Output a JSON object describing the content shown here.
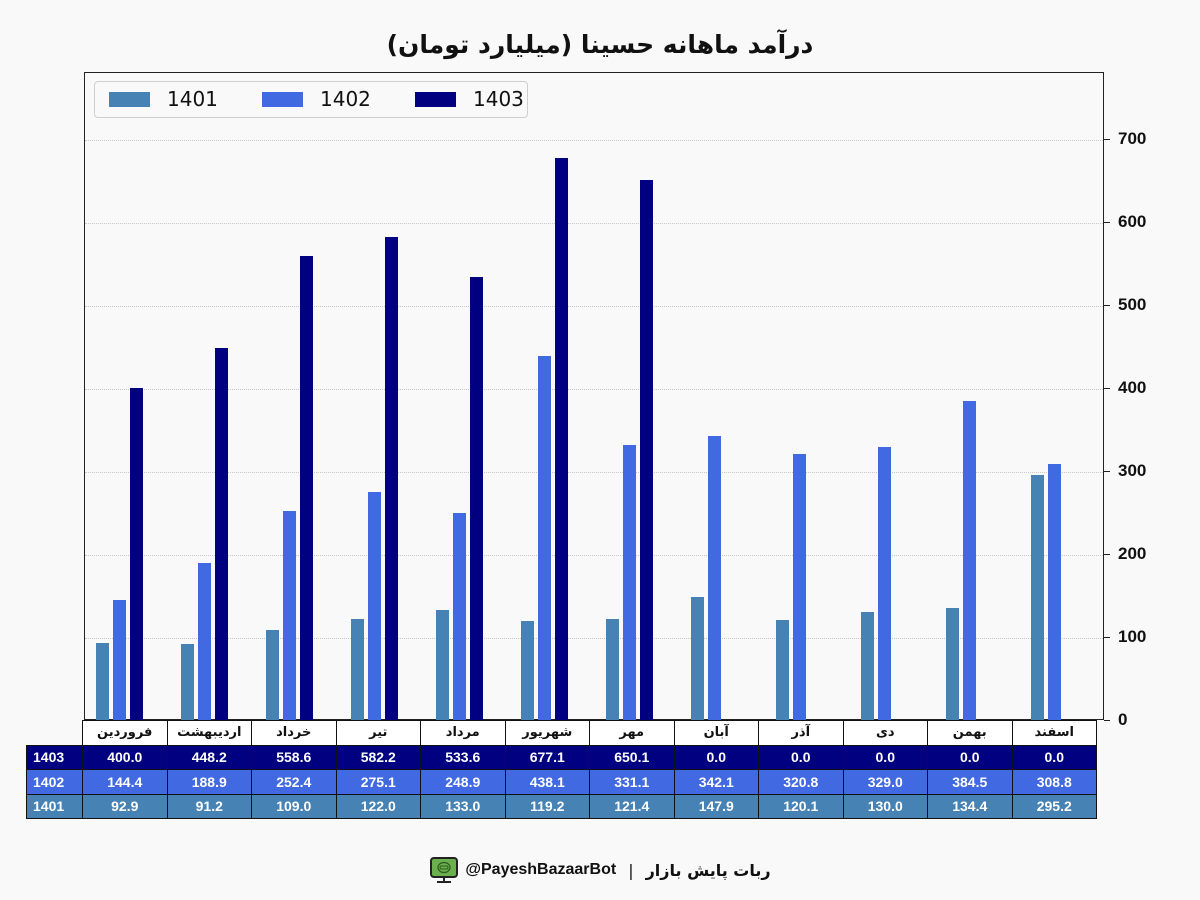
{
  "title": "درآمد ماهانه حسینا (میلیارد تومان)",
  "footer": {
    "handle": "@PayeshBazaarBot",
    "separator": "|",
    "text": "ربات پایش بازار",
    "icon": "monitor-bot-icon"
  },
  "colors": {
    "1401": "#4682b4",
    "1402": "#4169e1",
    "1403": "#000080",
    "background": "#f9f9f9"
  },
  "legend": [
    "1401",
    "1402",
    "1403"
  ],
  "y_ticks": [
    "0",
    "100",
    "200",
    "300",
    "400",
    "500",
    "600",
    "700"
  ],
  "table": {
    "months": [
      "فروردین",
      "اردیبهشت",
      "خرداد",
      "تیر",
      "مرداد",
      "شهریور",
      "مهر",
      "آبان",
      "آذر",
      "دی",
      "بهمن",
      "اسفند"
    ],
    "rows": [
      {
        "label": "1403",
        "values": [
          "400.0",
          "448.2",
          "558.6",
          "582.2",
          "533.6",
          "677.1",
          "650.1",
          "0.0",
          "0.0",
          "0.0",
          "0.0",
          "0.0"
        ]
      },
      {
        "label": "1402",
        "values": [
          "144.4",
          "188.9",
          "252.4",
          "275.1",
          "248.9",
          "438.1",
          "331.1",
          "342.1",
          "320.8",
          "329.0",
          "384.5",
          "308.8"
        ]
      },
      {
        "label": "1401",
        "values": [
          "92.9",
          "91.2",
          "109.0",
          "122.0",
          "133.0",
          "119.2",
          "121.4",
          "147.9",
          "120.1",
          "130.0",
          "134.4",
          "295.2"
        ]
      }
    ]
  },
  "chart_data": {
    "type": "bar",
    "title": "درآمد ماهانه حسینا (میلیارد تومان)",
    "xlabel": "",
    "ylabel": "",
    "ylim": [
      0,
      780
    ],
    "y_axis_position": "right",
    "grid": true,
    "legend_position": "upper left",
    "categories": [
      "فروردین",
      "اردیبهشت",
      "خرداد",
      "تیر",
      "مرداد",
      "شهریور",
      "مهر",
      "آبان",
      "آذر",
      "دی",
      "بهمن",
      "اسفند"
    ],
    "series": [
      {
        "name": "1401",
        "color": "#4682b4",
        "values": [
          92.9,
          91.2,
          109.0,
          122.0,
          133.0,
          119.2,
          121.4,
          147.9,
          120.1,
          130.0,
          134.4,
          295.2
        ]
      },
      {
        "name": "1402",
        "color": "#4169e1",
        "values": [
          144.4,
          188.9,
          252.4,
          275.1,
          248.9,
          438.1,
          331.1,
          342.1,
          320.8,
          329.0,
          384.5,
          308.8
        ]
      },
      {
        "name": "1403",
        "color": "#000080",
        "values": [
          400.0,
          448.2,
          558.6,
          582.2,
          533.6,
          677.1,
          650.1,
          0.0,
          0.0,
          0.0,
          0.0,
          0.0
        ]
      }
    ]
  }
}
